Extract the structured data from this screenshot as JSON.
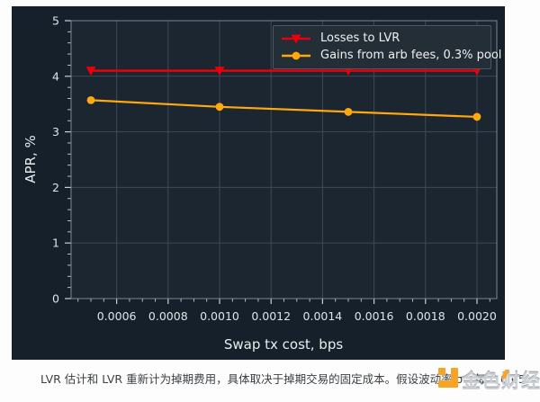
{
  "chart_data": {
    "type": "line",
    "title": "",
    "xlabel": "Swap tx cost, bps",
    "ylabel": "APR, %",
    "xlim": [
      0.000423,
      0.002077
    ],
    "ylim": [
      0,
      5
    ],
    "x_ticks": [
      0.0006,
      0.0008,
      0.001,
      0.0012,
      0.0014,
      0.0016,
      0.0018,
      0.002
    ],
    "x_tick_labels": [
      "0.0006",
      "0.0008",
      "0.0010",
      "0.0012",
      "0.0014",
      "0.0016",
      "0.0018",
      "0.0020"
    ],
    "y_ticks": [
      0,
      1,
      2,
      3,
      4,
      5
    ],
    "y_tick_labels": [
      "0",
      "1",
      "2",
      "3",
      "4",
      "5"
    ],
    "x_minor_step": 5e-05,
    "y_minor_step": 0.2,
    "grid": true,
    "legend_position": "upper right",
    "x": [
      0.0005,
      0.001,
      0.0015,
      0.002
    ],
    "series": [
      {
        "name": "Losses to LVR",
        "color": "#e8000b",
        "marker": "triangle-down",
        "line_width": 2.6,
        "values": [
          4.1,
          4.1,
          4.1,
          4.1
        ]
      },
      {
        "name": "Gains from arb fees, 0.3% pool",
        "color": "#ffa90e",
        "marker": "circle",
        "line_width": 2.2,
        "values": [
          3.57,
          3.45,
          3.36,
          3.27
        ]
      }
    ],
    "theme": {
      "figure_bg": "#15202a",
      "axes_bg": "#1b2631",
      "grid_color": "#3d4a54",
      "spine_color": "#7b8790",
      "tick_color": "#c9d0d5",
      "tick_label_color": "#dfe4e8",
      "axis_label_color": "#e9edf0",
      "legend_bg": "#232e37",
      "legend_border": "#4d575f"
    }
  },
  "caption": {
    "text": "LVR 估计和 LVR 重新计为掉期费用，具体取决于掉期交易的固定成本。假设波动率 σ：每天 0.05"
  },
  "watermark": {
    "text": "金色财经",
    "logo_color": "#f7a324",
    "text_color": "#c9ced3"
  }
}
